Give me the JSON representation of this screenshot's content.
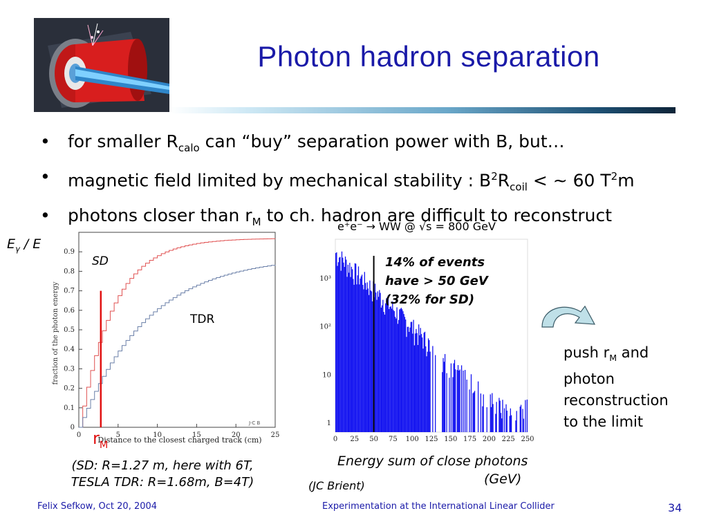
{
  "slide": {
    "title": "Photon hadron separation",
    "page_number": "34"
  },
  "bullets": [
    {
      "pre": "for smaller R",
      "sub": "calo",
      "post": " can “buy” separation power with B, but…"
    },
    {
      "pre": "magnetic field limited by mechanical stability : B",
      "sup1": "2",
      "mid": "R",
      "sub": "coil",
      "mid2": " < ~ 60 T",
      "sup2": "2",
      "post": "m"
    },
    {
      "pre": "photons closer than r",
      "sub": "M",
      "post": " to ch. hadron are difficult to reconstruct"
    }
  ],
  "left_plot": {
    "ylabel_outer": "E",
    "ylabel_outer_sub": "γ",
    "ylabel_outer_post": " / E",
    "y_axis_title": "fraction of the photon energy",
    "x_axis_title": "Distance to the closest charged track (cm)",
    "x_ticks": [
      "0",
      "5",
      "10",
      "15",
      "20",
      "25"
    ],
    "y_ticks": [
      "0",
      "0.1",
      "0.2",
      "0.3",
      "0.4",
      "0.5",
      "0.6",
      "0.7",
      "0.8",
      "0.9"
    ],
    "label_sd": "SD",
    "label_tdr": "TDR",
    "rm_main": "r",
    "rm_sub": "M",
    "corner_tag": "J-C B",
    "caption_line1": "(SD: R=1.27 m, here with 6T,",
    "caption_line2": "TESLA TDR: R=1.68m, B=4T)",
    "colors": {
      "sd": "#e05050",
      "tdr": "#6a7fa8",
      "rm_line": "#e01010",
      "rm_text": "#e01010"
    }
  },
  "right_plot": {
    "header": "e⁺e⁻ → WW  @ √s = 800 GeV",
    "x_ticks": [
      "0",
      "25",
      "50",
      "75",
      "100",
      "125",
      "150",
      "175",
      "200",
      "225",
      "250"
    ],
    "y_ticks": [
      "1",
      "10",
      "10²",
      "10³"
    ],
    "note_line1": "14% of events",
    "note_line2": "have > 50 GeV",
    "note_line3": "(32% for SD)",
    "caption_line1": "Energy sum of close photons",
    "caption_line2": "(GeV)",
    "credit": "(JC Brient)",
    "colors": {
      "hist": "#1010f0"
    }
  },
  "side_note": {
    "line1_pre": "push r",
    "line1_sub": "M",
    "line1_post": " and",
    "line2": "photon",
    "line3": "reconstruction",
    "line4": "to the limit"
  },
  "footer": {
    "left": "Felix Sefkow, Oct 20, 2004",
    "center": "Experimentation at the International Linear Collider"
  }
}
